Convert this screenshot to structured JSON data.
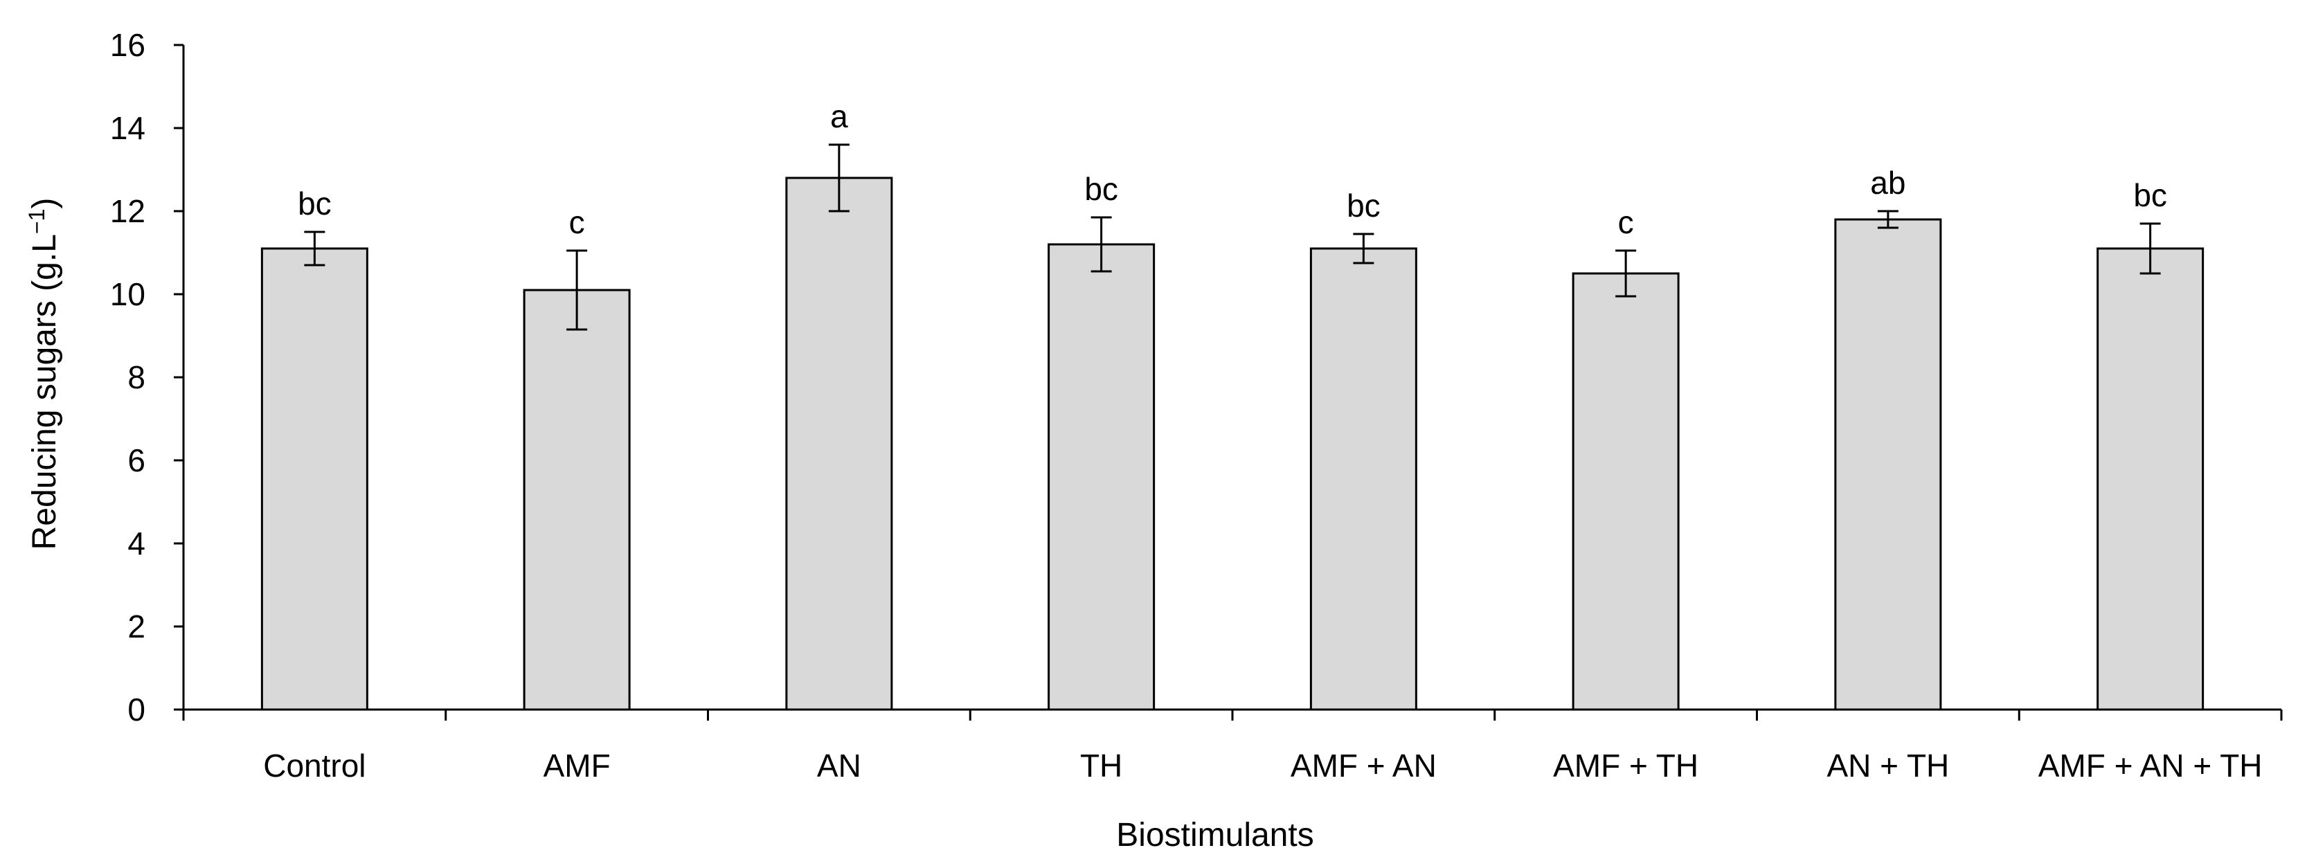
{
  "chart_data": {
    "type": "bar",
    "categories": [
      "Control",
      "AMF",
      "AN",
      "TH",
      "AMF + AN",
      "AMF + TH",
      "AN + TH",
      "AMF + AN + TH"
    ],
    "values": [
      11.1,
      10.1,
      12.8,
      11.2,
      11.1,
      10.5,
      11.8,
      11.1
    ],
    "errors": [
      0.4,
      0.95,
      0.8,
      0.65,
      0.35,
      0.55,
      0.2,
      0.6
    ],
    "significance_labels": [
      "bc",
      "c",
      "a",
      "bc",
      "bc",
      "c",
      "ab",
      "bc"
    ],
    "xlabel": "Biostimulants",
    "ylabel": "Reducing sugars (g.L",
    "ylabel_superscript": "−1",
    "ylabel_close": ")",
    "ylim": [
      0,
      16
    ],
    "yticks": [
      0,
      2,
      4,
      6,
      8,
      10,
      12,
      14,
      16
    ],
    "grid": false,
    "legend": "none",
    "bar_color": "#d9d9d9",
    "edge_color": "#000000"
  }
}
